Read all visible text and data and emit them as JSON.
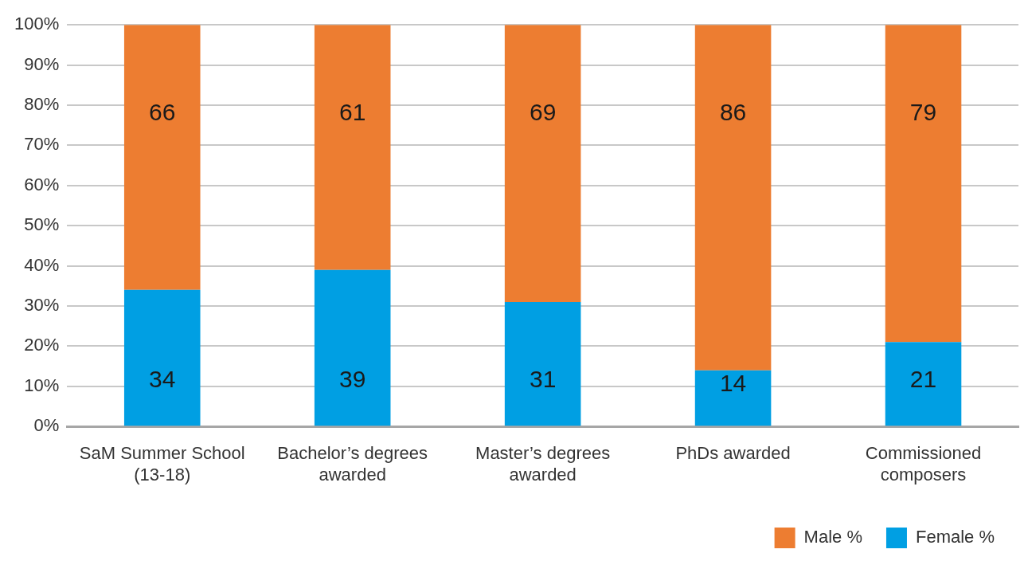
{
  "chart_data": {
    "type": "bar",
    "stacked": true,
    "categories": [
      "SaM Summer School (13-18)",
      "Bachelor’s degrees awarded",
      "Master’s degrees awarded",
      "PhDs awarded",
      "Commissioned composers"
    ],
    "series": [
      {
        "name": "Female %",
        "color": "#009fe3",
        "values": [
          34,
          39,
          31,
          14,
          21
        ]
      },
      {
        "name": "Male %",
        "color": "#ed7d31",
        "values": [
          66,
          61,
          69,
          86,
          79
        ]
      }
    ],
    "ylim": [
      0,
      100
    ],
    "yticks": [
      {
        "value": 0,
        "label": "0%"
      },
      {
        "value": 10,
        "label": "10%"
      },
      {
        "value": 20,
        "label": "20%"
      },
      {
        "value": 30,
        "label": "30%"
      },
      {
        "value": 40,
        "label": "40%"
      },
      {
        "value": 50,
        "label": "50%"
      },
      {
        "value": 60,
        "label": "60%"
      },
      {
        "value": 70,
        "label": "70%"
      },
      {
        "value": 80,
        "label": "80%"
      },
      {
        "value": 90,
        "label": "90%"
      },
      {
        "value": 100,
        "label": "100%"
      }
    ],
    "grid": "y",
    "data_labels": true,
    "legend": "bottom right"
  }
}
